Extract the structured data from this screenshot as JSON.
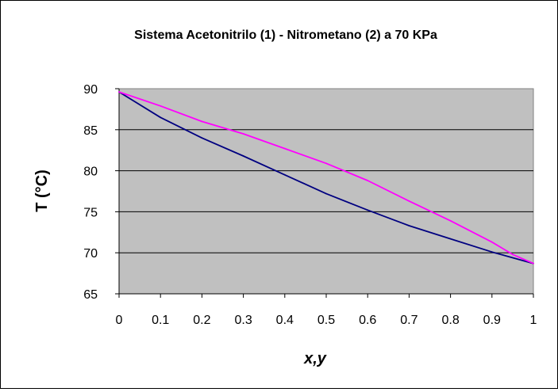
{
  "chart_data": {
    "type": "line",
    "title": "Sistema Acetonitrilo (1) - Nitrometano (2) a 70 KPa",
    "xlabel": "x,y",
    "ylabel": "T (°C)",
    "xlim": [
      0,
      1
    ],
    "ylim": [
      65,
      90
    ],
    "xticks": [
      "0",
      "0.1",
      "0.2",
      "0.3",
      "0.4",
      "0.5",
      "0.6",
      "0.7",
      "0.8",
      "0.9",
      "1"
    ],
    "yticks": [
      "65",
      "70",
      "75",
      "80",
      "85",
      "90"
    ],
    "grid": "horizontal",
    "plot_background": "#c0c0c0",
    "series": [
      {
        "color": "#000080",
        "x": [
          0,
          0.1,
          0.2,
          0.3,
          0.4,
          0.5,
          0.6,
          0.7,
          0.8,
          0.9,
          1
        ],
        "y": [
          89.6,
          86.5,
          84.0,
          81.8,
          79.5,
          77.2,
          75.2,
          73.3,
          71.7,
          70.1,
          68.7
        ]
      },
      {
        "color": "#ff00ff",
        "x": [
          0,
          0.1,
          0.2,
          0.3,
          0.4,
          0.5,
          0.6,
          0.7,
          0.8,
          0.9,
          0.95,
          1
        ],
        "y": [
          89.6,
          87.9,
          86.0,
          84.5,
          82.7,
          80.9,
          78.8,
          76.3,
          73.9,
          71.3,
          69.8,
          68.7
        ]
      }
    ]
  }
}
